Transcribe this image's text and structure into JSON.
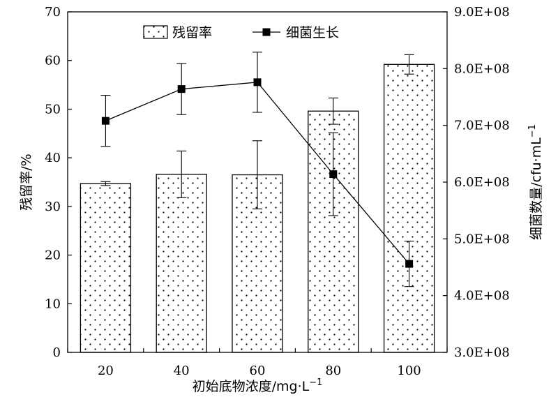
{
  "chart_data": {
    "type": "bar",
    "categories": [
      "20",
      "40",
      "60",
      "80",
      "100"
    ],
    "xlabel": "初始底物浓度/mg·L",
    "xlabel_sup": "−1",
    "ylabel_left": "残留率/%",
    "ylabel_right": "细菌数量/cfu·mL",
    "ylabel_right_sup": "−1",
    "ylim_left": [
      0,
      70
    ],
    "yticks_left": [
      0,
      10,
      20,
      30,
      40,
      50,
      60,
      70
    ],
    "ylim_right": [
      300000000,
      900000000
    ],
    "yticks_right": [
      "3.0E+08",
      "4.0E+08",
      "5.0E+08",
      "6.0E+08",
      "7.0E+08",
      "8.0E+08",
      "9.0E+08"
    ],
    "yticks_right_values": [
      300000000,
      400000000,
      500000000,
      600000000,
      700000000,
      800000000,
      900000000
    ],
    "legend_position": "top-center",
    "series": [
      {
        "name": "残留率",
        "kind": "bar",
        "axis": "left",
        "pattern": "dotted",
        "values": [
          34.7,
          36.6,
          36.5,
          49.6,
          59.2
        ],
        "errors": [
          0.4,
          4.8,
          7.0,
          2.7,
          2.0
        ]
      },
      {
        "name": "细菌生长",
        "kind": "line",
        "axis": "right",
        "marker": "square",
        "values": [
          708000000,
          764000000,
          776000000,
          614000000,
          456000000
        ],
        "errors": [
          45000000,
          45000000,
          53000000,
          73000000,
          40000000
        ]
      }
    ]
  }
}
